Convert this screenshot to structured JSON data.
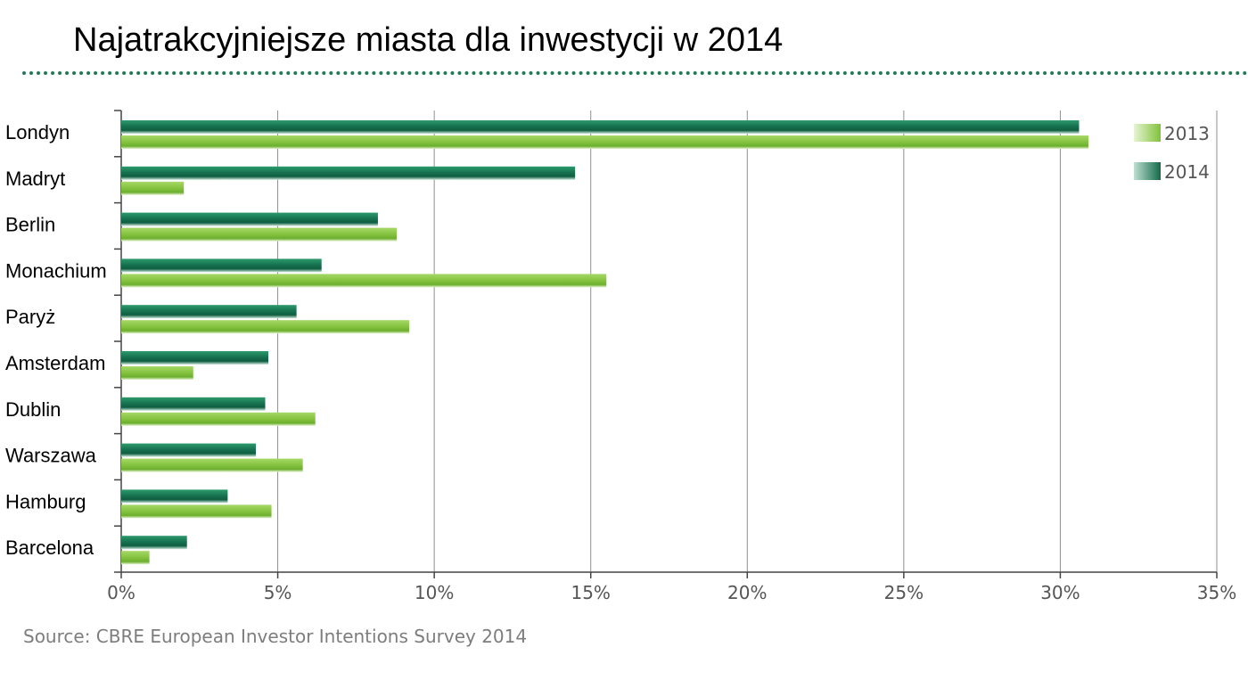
{
  "chart_data": {
    "type": "bar",
    "orientation": "horizontal",
    "title": "Najatrakcyjniejsze miasta dla inwestycji w 2014",
    "categories": [
      "Londyn",
      "Madryt",
      "Berlin",
      "Monachium",
      "Paryż",
      "Amsterdam",
      "Dublin",
      "Warszawa",
      "Hamburg",
      "Barcelona"
    ],
    "series": [
      {
        "name": "2014",
        "color": "#1a7a55",
        "values": [
          30.6,
          14.5,
          8.2,
          6.4,
          5.6,
          4.7,
          4.6,
          4.3,
          3.4,
          2.1
        ]
      },
      {
        "name": "2013",
        "color": "#86c440",
        "values": [
          30.9,
          2.0,
          8.8,
          15.5,
          9.2,
          2.3,
          6.2,
          5.8,
          4.8,
          0.9
        ]
      }
    ],
    "xlim": [
      0,
      35
    ],
    "xticks": [
      0,
      5,
      10,
      15,
      20,
      25,
      30,
      35
    ],
    "tick_labels": [
      "0%",
      "5%",
      "10%",
      "15%",
      "20%",
      "25%",
      "30%",
      "35%"
    ],
    "legend": [
      {
        "label": "2013",
        "color": "#86c440"
      },
      {
        "label": "2014",
        "color": "#1a7a55"
      }
    ],
    "legend_position": "top-right",
    "grid": true,
    "xlabel": "",
    "ylabel": ""
  },
  "source": "Source: CBRE European Investor Intentions Survey 2014"
}
